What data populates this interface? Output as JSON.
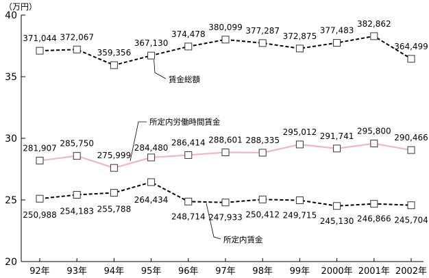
{
  "chart_data": {
    "type": "line",
    "unit_label": "（万円）",
    "categories": [
      "92年",
      "93年",
      "94年",
      "95年",
      "96年",
      "97年",
      "98年",
      "99年",
      "2000年",
      "2001年",
      "2002年"
    ],
    "y_ticks": [
      "20",
      "25",
      "30",
      "35",
      "40"
    ],
    "ylim": [
      20,
      40
    ],
    "grid": false,
    "series": [
      {
        "name": "賃金総額",
        "line_style": "dashed",
        "color": "#000000",
        "values": [
          37.1044,
          37.2067,
          35.9356,
          36.713,
          37.4478,
          38.0099,
          37.7287,
          37.2875,
          37.7483,
          38.2862,
          36.4499
        ],
        "labels": [
          "371,044",
          "372,067",
          "359,356",
          "367,130",
          "374,478",
          "380,099",
          "377,287",
          "372,875",
          "377,483",
          "382,862",
          "364,499"
        ]
      },
      {
        "name": "所定内労働時間賃金",
        "line_style": "solid",
        "color": "#f4b6b8",
        "values": [
          28.1907,
          28.575,
          27.5999,
          28.448,
          28.6414,
          28.8601,
          28.8335,
          29.5012,
          29.1741,
          29.58,
          29.0466
        ],
        "labels": [
          "281,907",
          "285,750",
          "275,999",
          "284,480",
          "286,414",
          "288,601",
          "288,335",
          "295,012",
          "291,741",
          "295,800",
          "290,466"
        ]
      },
      {
        "name": "所定内賃金",
        "line_style": "dashed",
        "color": "#000000",
        "values": [
          25.0988,
          25.4183,
          25.5788,
          26.4434,
          24.8714,
          24.7933,
          25.0412,
          24.9715,
          24.513,
          24.6866,
          24.5704
        ],
        "labels": [
          "250,988",
          "254,183",
          "255,788",
          "264,434",
          "248,714",
          "247,933",
          "250,412",
          "249,715",
          "245,130",
          "246,866",
          "245,704"
        ]
      }
    ]
  }
}
